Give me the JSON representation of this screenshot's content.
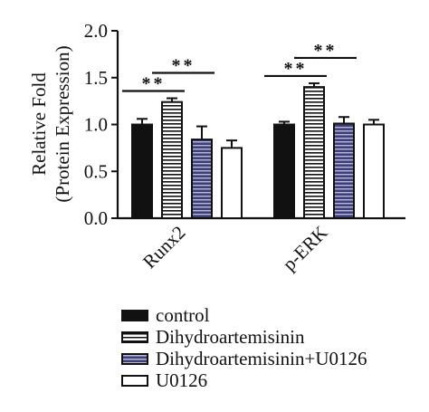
{
  "chart_data": {
    "type": "bar",
    "ylabel": [
      "Relative Fold",
      "(Protein Expression)"
    ],
    "ylim": [
      0,
      2.0
    ],
    "yticks": [
      "0.0",
      "0.5",
      "1.0",
      "1.5",
      "2.0"
    ],
    "categories": [
      "Runx2",
      "p-ERK"
    ],
    "series": [
      {
        "name": "control",
        "values": [
          1.0,
          1.0
        ],
        "errors": [
          0.06,
          0.03
        ],
        "fill": "solid-black"
      },
      {
        "name": "Dihydroartemisinin",
        "values": [
          1.24,
          1.4
        ],
        "errors": [
          0.04,
          0.04
        ],
        "fill": "horizontal-stripes"
      },
      {
        "name": "Dihydroartemisinin+U0126",
        "values": [
          0.84,
          1.01
        ],
        "errors": [
          0.14,
          0.07
        ],
        "fill": "purple-stripes"
      },
      {
        "name": "U0126",
        "values": [
          0.75,
          1.0
        ],
        "errors": [
          0.08,
          0.05
        ],
        "fill": "white"
      }
    ],
    "significance": [
      {
        "category": "Runx2",
        "from": "control",
        "to": "Dihydroartemisinin",
        "label": "**"
      },
      {
        "category": "Runx2",
        "from": "Dihydroartemisinin",
        "to": "Dihydroartemisinin+U0126",
        "label": "**"
      },
      {
        "category": "p-ERK",
        "from": "control",
        "to": "Dihydroartemisinin",
        "label": "**"
      },
      {
        "category": "p-ERK",
        "from": "Dihydroartemisinin",
        "to": "Dihydroartemisinin+U0126",
        "label": "**"
      }
    ],
    "legend_position": "bottom-left",
    "grid": false
  },
  "colors": {
    "axis": "#111111",
    "black_fill": "#111111",
    "purple_fill": "#3f3f78",
    "stripe_light": "#ffffff"
  }
}
